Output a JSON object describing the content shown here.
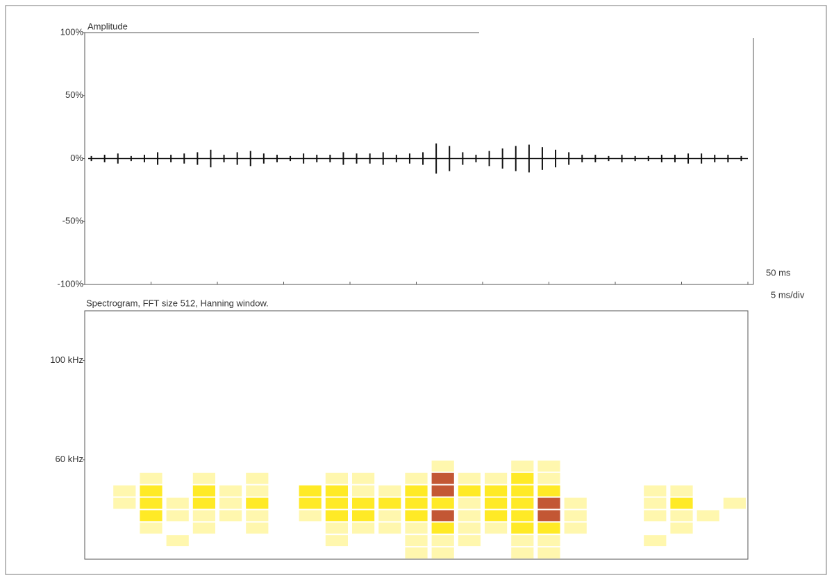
{
  "chart_data": [
    {
      "type": "waveform",
      "title": "Amplitude",
      "x": [
        0.5,
        1.5,
        2.5,
        3.5,
        4.5,
        5.5,
        6.5,
        7.5,
        8.5,
        9.5,
        10.5,
        11.5,
        12.5,
        13.5,
        14.5,
        15.5,
        16.5,
        17.5,
        18.5,
        19.5,
        20.5,
        21.5,
        22.5,
        23.5,
        24.5,
        25.5,
        26.5,
        27.5,
        28.5,
        29.5,
        30.5,
        31.5,
        32.5,
        33.5,
        34.5,
        35.5,
        36.5,
        37.5,
        38.5,
        39.5,
        40.5,
        41.5,
        42.5,
        43.5,
        44.5,
        45.5,
        46.5,
        47.5,
        48.5,
        49.5
      ],
      "values": [
        2,
        3,
        4,
        2,
        3,
        5,
        3,
        4,
        5,
        7,
        3,
        5,
        6,
        4,
        3,
        2,
        4,
        3,
        3,
        5,
        4,
        4,
        5,
        3,
        4,
        5,
        12,
        10,
        5,
        3,
        6,
        8,
        10,
        11,
        9,
        7,
        5,
        3,
        3,
        2,
        3,
        2,
        2,
        3,
        3,
        4,
        4,
        3,
        3,
        2
      ],
      "color": "#111111",
      "xlim": [
        0,
        50
      ],
      "xticks": [
        0,
        5,
        10,
        15,
        20,
        25,
        30,
        35,
        40,
        45,
        50
      ],
      "x_end_label": "50 ms",
      "x_division_label": "5 ms/div",
      "ylim": [
        -100,
        100
      ],
      "yticks": [
        {
          "value": 100,
          "label": "100%"
        },
        {
          "value": 50,
          "label": "50%"
        },
        {
          "value": 0,
          "label": "0%"
        },
        {
          "value": -50,
          "label": "-50%"
        },
        {
          "value": -100,
          "label": "-100%"
        }
      ]
    },
    {
      "type": "heatmap",
      "title": "Spectrogram, FFT size 512, Hanning window.",
      "xbins": [
        0,
        2,
        4,
        6,
        8,
        10,
        12,
        14,
        16,
        18,
        20,
        22,
        24,
        26,
        28,
        30,
        32,
        34,
        36,
        38,
        40,
        42,
        44,
        46,
        48,
        50
      ],
      "ybins": [
        60,
        55,
        50,
        45,
        40,
        35,
        30,
        25,
        20
      ],
      "values": [
        [
          0,
          0,
          0,
          0,
          0,
          0,
          0,
          0,
          0,
          0,
          0,
          0,
          0,
          1,
          0,
          0,
          1,
          1,
          0,
          0,
          0,
          0,
          0,
          0,
          0
        ],
        [
          0,
          0,
          1,
          0,
          1,
          0,
          1,
          0,
          0,
          1,
          1,
          0,
          1,
          3,
          1,
          1,
          2,
          1,
          0,
          0,
          0,
          0,
          0,
          0,
          0
        ],
        [
          0,
          1,
          2,
          0,
          2,
          1,
          1,
          0,
          2,
          2,
          1,
          1,
          2,
          3,
          2,
          2,
          2,
          2,
          0,
          0,
          0,
          1,
          1,
          0,
          0
        ],
        [
          0,
          1,
          2,
          1,
          2,
          1,
          2,
          0,
          2,
          2,
          2,
          2,
          2,
          2,
          1,
          2,
          2,
          3,
          1,
          0,
          0,
          1,
          2,
          0,
          1
        ],
        [
          0,
          0,
          2,
          1,
          1,
          1,
          1,
          0,
          1,
          2,
          2,
          1,
          2,
          3,
          1,
          2,
          2,
          3,
          1,
          0,
          0,
          1,
          1,
          1,
          0
        ],
        [
          0,
          0,
          1,
          0,
          1,
          0,
          1,
          0,
          0,
          1,
          1,
          1,
          1,
          2,
          1,
          1,
          2,
          2,
          1,
          0,
          0,
          0,
          1,
          0,
          0
        ],
        [
          0,
          0,
          0,
          1,
          0,
          0,
          0,
          0,
          0,
          1,
          0,
          0,
          1,
          1,
          1,
          0,
          1,
          1,
          0,
          0,
          0,
          1,
          0,
          0,
          0
        ],
        [
          0,
          0,
          0,
          0,
          0,
          0,
          0,
          0,
          0,
          0,
          0,
          0,
          1,
          1,
          0,
          0,
          1,
          1,
          0,
          0,
          0,
          0,
          0,
          0,
          0
        ]
      ],
      "colors": [
        "#ffffff",
        "#fff6a0",
        "#ffe600",
        "#b83a10"
      ],
      "ylim": [
        20,
        120
      ],
      "yticks": [
        {
          "value": 100,
          "label": "100 kHz"
        },
        {
          "value": 60,
          "label": "60 kHz"
        }
      ]
    }
  ]
}
